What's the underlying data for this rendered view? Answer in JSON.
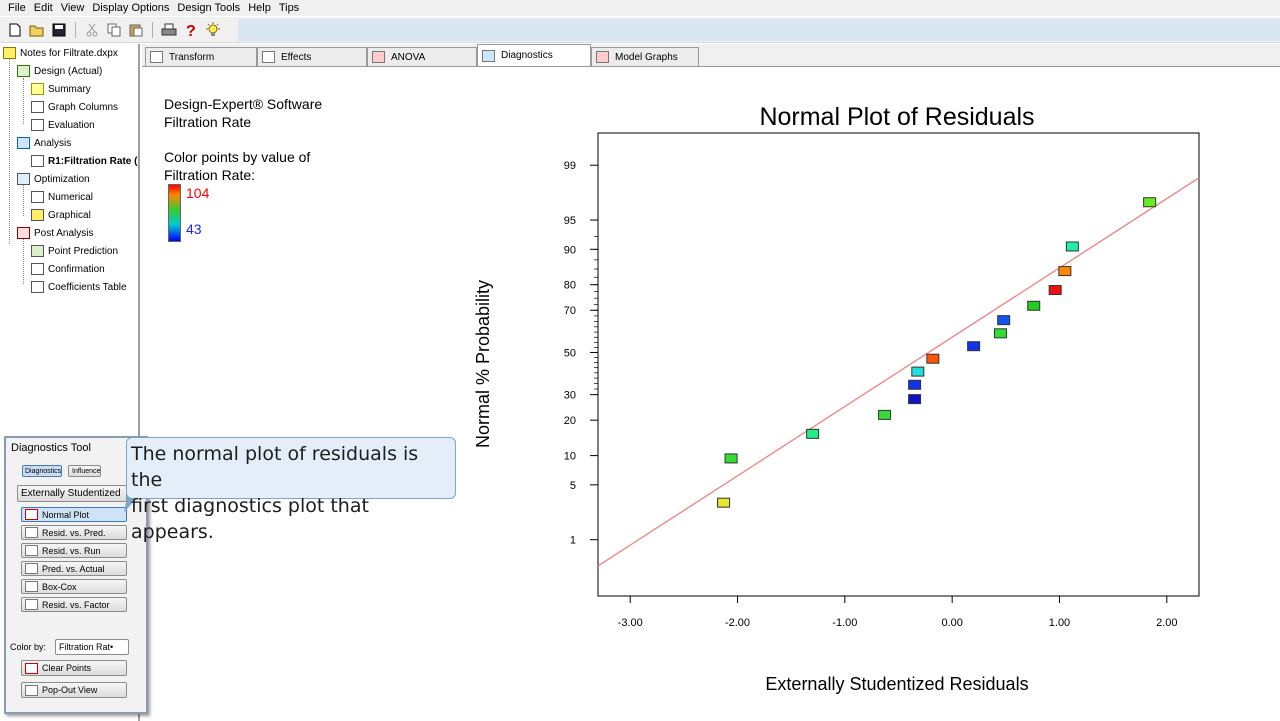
{
  "menu": [
    "File",
    "Edit",
    "View",
    "Display Options",
    "Design Tools",
    "Help",
    "Tips"
  ],
  "toolbar_icons": [
    "new-file-icon",
    "open-folder-icon",
    "save-icon",
    "cut-icon",
    "copy-icon",
    "paste-icon",
    "print-icon",
    "help-icon",
    "tip-bulb-icon"
  ],
  "tree": {
    "root": "Notes for Filtrate.dxpx",
    "design": "Design (Actual)",
    "summary": "Summary",
    "graph_columns": "Graph Columns",
    "evaluation": "Evaluation",
    "analysis": "Analysis",
    "r1": "R1:Filtration Rate (",
    "optimization": "Optimization",
    "numerical": "Numerical",
    "graphical": "Graphical",
    "post_analysis": "Post Analysis",
    "point_prediction": "Point Prediction",
    "confirmation": "Confirmation",
    "coefficients_table": "Coefficients Table"
  },
  "tabs": [
    "Transform",
    "Effects",
    "ANOVA",
    "Diagnostics",
    "Model Graphs"
  ],
  "active_tab": "Diagnostics",
  "info": {
    "software": "Design-Expert® Software",
    "response": "Filtration Rate",
    "color_by_line1": "Color points by value of",
    "color_by_line2": "Filtration Rate:",
    "legend_high": "104",
    "legend_low": "43",
    "legend_high_color": "#ff0000",
    "legend_low_color": "#2222ee"
  },
  "diagnostics_tool": {
    "title": "Diagnostics Tool",
    "tab_diagnostics": "Diagnostics",
    "tab_influence": "Influence",
    "residual_type": "Externally Studentized",
    "buttons": [
      "Normal Plot",
      "Resid. vs. Pred.",
      "Resid. vs. Run",
      "Pred. vs. Actual",
      "Box-Cox",
      "Resid. vs. Factor"
    ],
    "color_by_label": "Color by:",
    "color_by_value": "Filtration Rat•",
    "clear_points": "Clear Points",
    "pop_out": "Pop-Out View"
  },
  "callout": {
    "line1": "The normal plot of residuals is the",
    "line2": "first diagnostics plot that appears."
  },
  "chart_data": {
    "type": "scatter",
    "title": "Normal Plot of Residuals",
    "xlabel": "Externally Studentized Residuals",
    "ylabel": "Normal % Probability",
    "xlim": [
      -3.3,
      2.3
    ],
    "x_ticks": [
      "-3.00",
      "-2.00",
      "-1.00",
      "0.00",
      "1.00",
      "2.00"
    ],
    "x_tick_values": [
      -3,
      -2,
      -1,
      0,
      1,
      2
    ],
    "y_ticks": [
      "1",
      "5",
      "10",
      "20",
      "30",
      "50",
      "70",
      "80",
      "90",
      "95",
      "99"
    ],
    "y_tick_values": [
      1,
      5,
      10,
      20,
      30,
      50,
      70,
      80,
      90,
      95,
      99
    ],
    "y_scale": "normal-probability",
    "grid": false,
    "fit_line": {
      "color": "#f08080",
      "x": [
        -3.3,
        2.3
      ],
      "y": [
        0.4,
        98.5
      ]
    },
    "points": [
      {
        "x": -2.13,
        "y": 3.1,
        "color": "#e6e62e"
      },
      {
        "x": -2.06,
        "y": 9.4,
        "color": "#33dd33"
      },
      {
        "x": -1.3,
        "y": 15.6,
        "color": "#22ee88"
      },
      {
        "x": -0.63,
        "y": 21.9,
        "color": "#33dd33"
      },
      {
        "x": -0.35,
        "y": 28.1,
        "color": "#1111cc"
      },
      {
        "x": -0.35,
        "y": 34.4,
        "color": "#1133ee"
      },
      {
        "x": -0.32,
        "y": 40.6,
        "color": "#22dddd"
      },
      {
        "x": -0.18,
        "y": 46.9,
        "color": "#ff5500"
      },
      {
        "x": 0.2,
        "y": 53.1,
        "color": "#1133ee"
      },
      {
        "x": 0.45,
        "y": 59.4,
        "color": "#33dd33"
      },
      {
        "x": 0.48,
        "y": 65.6,
        "color": "#1155ee"
      },
      {
        "x": 0.76,
        "y": 71.9,
        "color": "#22cc22"
      },
      {
        "x": 0.96,
        "y": 78.1,
        "color": "#ee1111"
      },
      {
        "x": 1.05,
        "y": 84.4,
        "color": "#ff8800"
      },
      {
        "x": 1.12,
        "y": 90.6,
        "color": "#22eeaa"
      },
      {
        "x": 1.84,
        "y": 96.9,
        "color": "#66ee22"
      }
    ]
  }
}
